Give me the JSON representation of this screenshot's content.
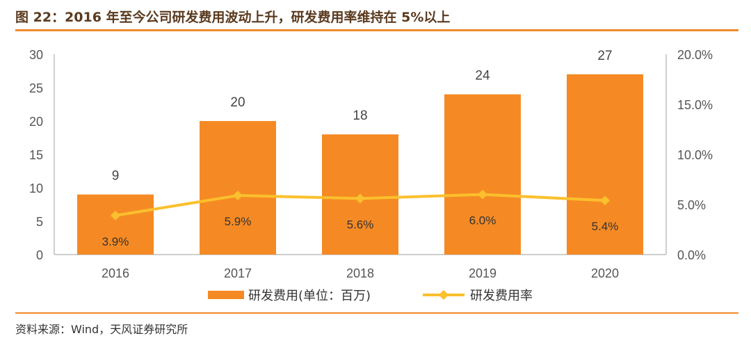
{
  "header": {
    "title": "图 22：2016 年至今公司研发费用波动上升，研发费用率维持在 5%以上"
  },
  "footer": {
    "source": "资料来源：Wind，天风证券研究所"
  },
  "chart_data": {
    "type": "bar",
    "categories": [
      "2016",
      "2017",
      "2018",
      "2019",
      "2020"
    ],
    "series": [
      {
        "name": "研发费用(单位：百万)",
        "type": "bar",
        "axis": "left",
        "values": [
          9,
          20,
          18,
          24,
          27
        ],
        "labels": [
          "9",
          "20",
          "18",
          "24",
          "27"
        ],
        "color": "#f58a24"
      },
      {
        "name": "研发费用率",
        "type": "line",
        "axis": "right",
        "values": [
          3.9,
          5.9,
          5.6,
          6.0,
          5.4
        ],
        "labels": [
          "3.9%",
          "5.9%",
          "5.6%",
          "6.0%",
          "5.4%"
        ],
        "color": "#fbc02d"
      }
    ],
    "y_left": {
      "lim": [
        0,
        30
      ],
      "ticks": [
        0,
        5,
        10,
        15,
        20,
        25,
        30
      ],
      "tick_labels": [
        "0",
        "5",
        "10",
        "15",
        "20",
        "25",
        "30"
      ]
    },
    "y_right": {
      "lim": [
        0,
        20
      ],
      "ticks": [
        0,
        5,
        10,
        15,
        20
      ],
      "tick_labels": [
        "0.0%",
        "5.0%",
        "10.0%",
        "15.0%",
        "20.0%"
      ]
    },
    "grid": false,
    "legend_position": "bottom"
  }
}
